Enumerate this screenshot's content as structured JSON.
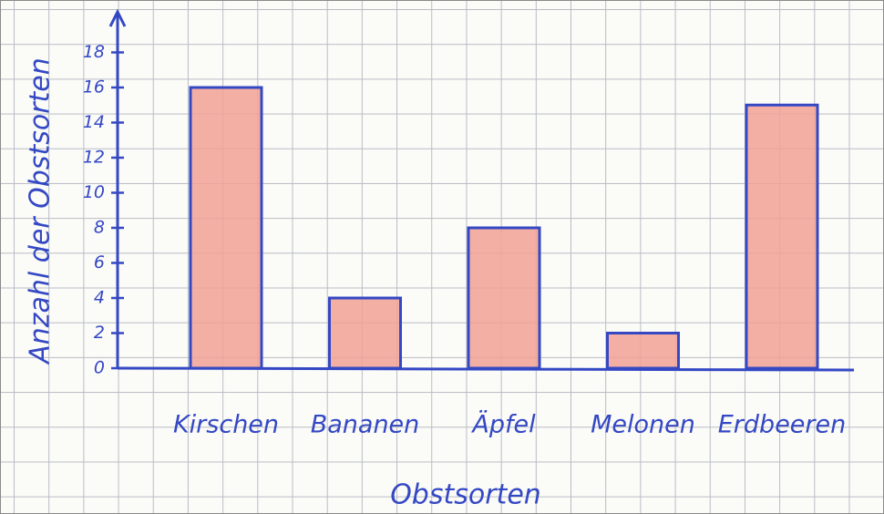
{
  "chart_data": {
    "type": "bar",
    "y_label": "Anzahl der Obstsorten",
    "x_label": "Obstsorten",
    "categories": [
      "Kirschen",
      "Bananen",
      "Äpfel",
      "Melonen",
      "Erdbeeren"
    ],
    "values": [
      16,
      4,
      8,
      2,
      15
    ],
    "color": "#f2a195",
    "ylim": [
      0,
      20
    ],
    "yticks": [
      0,
      2,
      4,
      6,
      8,
      10,
      12,
      14,
      16,
      18
    ]
  }
}
